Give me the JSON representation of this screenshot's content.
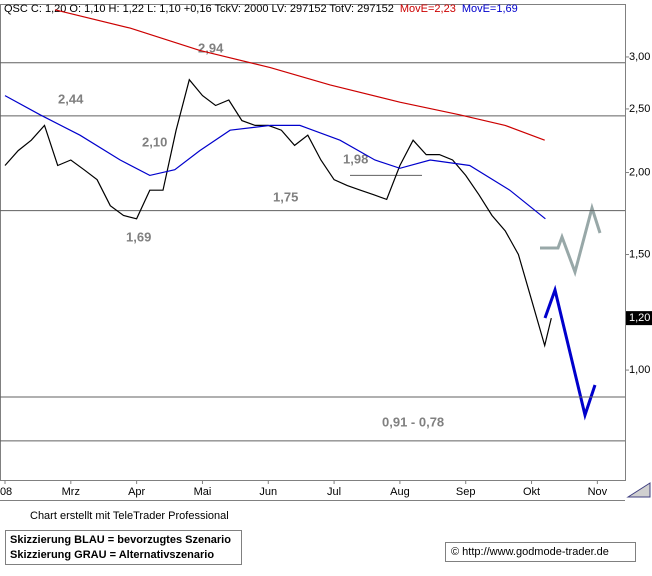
{
  "chart_data": {
    "type": "line",
    "header": "QSC C: 1,20 O: 1,10 H: 1,22 L: 1,10 +0,16 TckV: 2000 LV: 297152 TotV: 297152",
    "log_scale": true,
    "xlim": [
      -0.076,
      9.42
    ],
    "xticks": [
      {
        "value": 0,
        "label": "'08"
      },
      {
        "value": 1,
        "label": "Mrz"
      },
      {
        "value": 2,
        "label": "Apr"
      },
      {
        "value": 3,
        "label": "Mai"
      },
      {
        "value": 4,
        "label": "Jun"
      },
      {
        "value": 5,
        "label": "Jul"
      },
      {
        "value": 6,
        "label": "Aug"
      },
      {
        "value": 7,
        "label": "Sep"
      },
      {
        "value": 8,
        "label": "Okt"
      },
      {
        "value": 9,
        "label": "Nov"
      }
    ],
    "ylim": [
      0.68,
      3.6
    ],
    "yticks": [
      {
        "value": 1,
        "label": "1,00"
      },
      {
        "value": 1.5,
        "label": "1,50"
      },
      {
        "value": 2,
        "label": "2,00"
      },
      {
        "value": 2.5,
        "label": "2,50"
      },
      {
        "value": 3,
        "label": "3,00"
      }
    ],
    "last_value": {
      "value": 1.2,
      "label": "1,20"
    },
    "levels": [
      2.94,
      2.44,
      1.75,
      0.91,
      0.78
    ],
    "short_level": 1.98,
    "annotations": [
      "2,94",
      "2,44",
      "2,10",
      "1,98",
      "1,75",
      "1,69",
      "0,91 - 0,78"
    ],
    "series": [
      {
        "color": "#000000",
        "x": [
          0,
          0.2,
          0.4,
          0.6,
          0.8,
          1.0,
          1.2,
          1.4,
          1.6,
          1.8,
          2.0,
          2.2,
          2.4,
          2.6,
          2.8,
          3.0,
          3.2,
          3.4,
          3.6,
          3.8,
          4.0,
          4.2,
          4.4,
          4.6,
          4.8,
          5.0,
          5.2,
          5.4,
          5.6,
          5.8,
          6.0,
          6.2,
          6.4,
          6.6,
          6.8,
          7.0,
          7.2,
          7.4,
          7.6,
          7.8,
          8.0,
          8.2,
          8.3
        ],
        "values": [
          2.05,
          2.16,
          2.24,
          2.36,
          2.05,
          2.09,
          2.02,
          1.95,
          1.78,
          1.72,
          1.7,
          1.88,
          1.88,
          2.32,
          2.77,
          2.62,
          2.53,
          2.58,
          2.4,
          2.36,
          2.36,
          2.32,
          2.2,
          2.28,
          2.09,
          1.95,
          1.91,
          1.88,
          1.85,
          1.82,
          2.05,
          2.24,
          2.13,
          2.13,
          2.09,
          1.98,
          1.85,
          1.72,
          1.63,
          1.5,
          1.28,
          1.09,
          1.2
        ]
      },
      {
        "name": "MovE=2,23",
        "color": "#cc0000",
        "x": [
          0.76,
          1.9,
          2.96,
          4.03,
          4.94,
          6.0,
          6.9,
          7.6,
          8.2
        ],
        "values": [
          3.54,
          3.32,
          3.07,
          2.89,
          2.72,
          2.56,
          2.45,
          2.36,
          2.24
        ]
      },
      {
        "name": "MovE=1,69",
        "color": "#0000cc",
        "x": [
          0,
          0.53,
          1.14,
          1.75,
          2.2,
          2.58,
          2.96,
          3.42,
          4.03,
          4.48,
          5.09,
          5.62,
          6.0,
          6.46,
          7.06,
          7.67,
          8.21
        ],
        "values": [
          2.62,
          2.45,
          2.28,
          2.09,
          1.98,
          2.02,
          2.16,
          2.32,
          2.36,
          2.36,
          2.24,
          2.09,
          2.03,
          2.09,
          2.05,
          1.88,
          1.7
        ]
      }
    ]
  },
  "footer": {
    "credit": "Chart erstellt mit TeleTrader Professional",
    "note_blue": "Skizzierung BLAU = bevorzugtes Szenario",
    "note_gray": "Skizzierung GRAU = Alternativszenario",
    "copyright": "© http://www.godmode-trader.de"
  }
}
